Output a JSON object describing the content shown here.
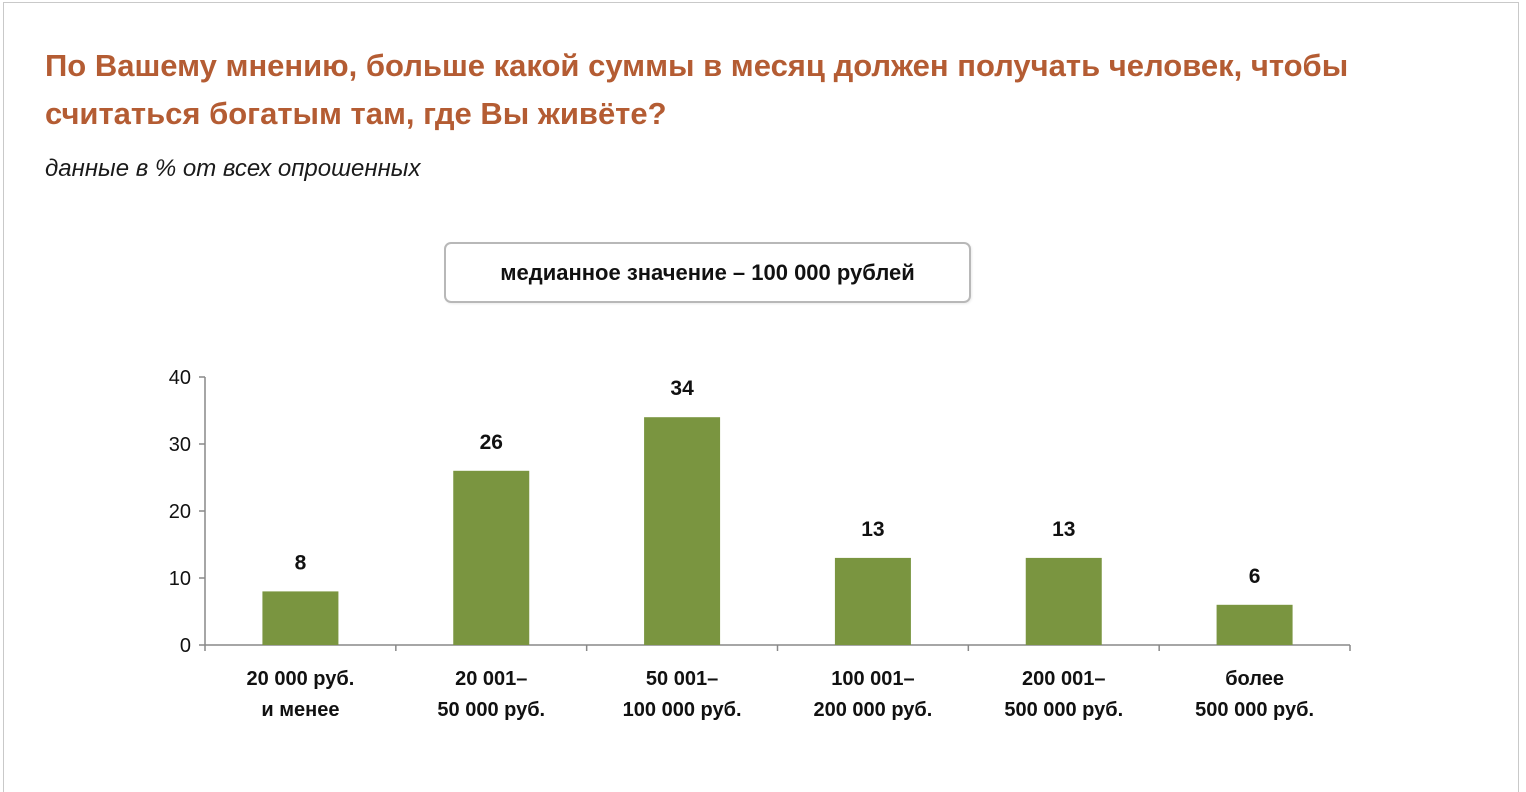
{
  "title": "По Вашему мнению, больше какой суммы в месяц должен получать человек, чтобы считаться богатым там, где Вы живёте?",
  "subtitle": "данные в % от всех опрошенных",
  "median_note": "медианное значение – 100 000 рублей",
  "colors": {
    "title": "#b45c33",
    "bar": "#7a9540",
    "axis": "#888888"
  },
  "chart_data": {
    "type": "bar",
    "title": "",
    "xlabel": "",
    "ylabel": "",
    "ylim": [
      0,
      40
    ],
    "yticks": [
      0,
      10,
      20,
      30,
      40
    ],
    "grid": false,
    "legend": "none",
    "categories": [
      [
        "20 000 руб.",
        "и менее"
      ],
      [
        "20 001–",
        "50 000 руб."
      ],
      [
        "50 001–",
        "100 000 руб."
      ],
      [
        "100 001–",
        "200 000 руб."
      ],
      [
        "200 001–",
        "500 000 руб."
      ],
      [
        "более",
        "500 000 руб."
      ]
    ],
    "values": [
      8,
      26,
      34,
      13,
      13,
      6
    ],
    "data_labels": [
      "8",
      "26",
      "34",
      "13",
      "13",
      "6"
    ]
  }
}
